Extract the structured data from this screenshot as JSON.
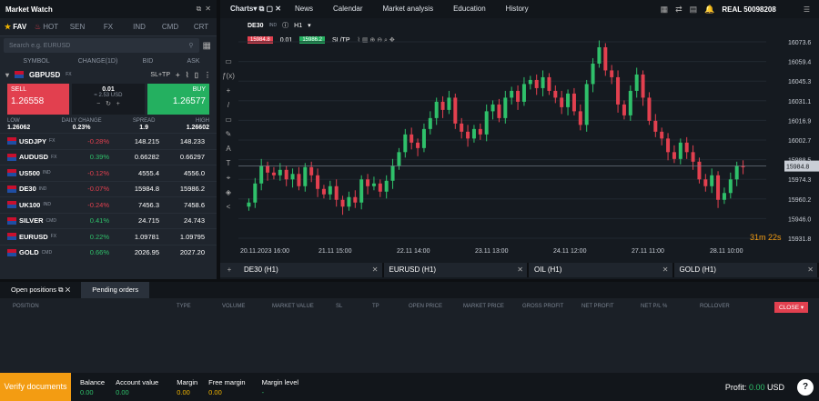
{
  "market_watch": {
    "title": "Market Watch",
    "tabs": [
      "FAV",
      "HOT",
      "SEN",
      "FX",
      "IND",
      "CMD",
      "CRT"
    ],
    "search_placeholder": "Search e.g. EURUSD",
    "columns": [
      "SYMBOL",
      "CHANGE(1D)",
      "BID",
      "ASK"
    ],
    "selected": {
      "symbol": "GBPUSD",
      "type": "FX",
      "sltp": "SL+TP",
      "sell_label": "SELL",
      "sell": "1.26558",
      "buy_label": "BUY",
      "buy": "1.26577",
      "volume": "0.01",
      "value": "≈ 2.53 USD",
      "low_label": "LOW",
      "low": "1.26062",
      "daily_label": "DAILY CHANGE",
      "daily": "0.23%",
      "spread_label": "SPREAD",
      "spread": "1.9",
      "high_label": "HIGH",
      "high": "1.26602"
    },
    "rows": [
      {
        "symbol": "USDJPY",
        "type": "FX",
        "change": "-0.28%",
        "bid": "148.215",
        "ask": "148.233",
        "neg": true
      },
      {
        "symbol": "AUDUSD",
        "type": "FX",
        "change": "0.39%",
        "bid": "0.66282",
        "ask": "0.66297",
        "neg": false
      },
      {
        "symbol": "US500",
        "type": "IND",
        "change": "-0.12%",
        "bid": "4555.4",
        "ask": "4556.0",
        "neg": true
      },
      {
        "symbol": "DE30",
        "type": "IND",
        "change": "-0.07%",
        "bid": "15984.8",
        "ask": "15986.2",
        "neg": true
      },
      {
        "symbol": "UK100",
        "type": "IND",
        "change": "-0.24%",
        "bid": "7456.3",
        "ask": "7458.6",
        "neg": true
      },
      {
        "symbol": "SILVER",
        "type": "CMD",
        "change": "0.41%",
        "bid": "24.715",
        "ask": "24.743",
        "neg": false
      },
      {
        "symbol": "EURUSD",
        "type": "FX",
        "change": "0.22%",
        "bid": "1.09781",
        "ask": "1.09795",
        "neg": false
      },
      {
        "symbol": "GOLD",
        "type": "CMD",
        "change": "0.66%",
        "bid": "2026.95",
        "ask": "2027.20",
        "neg": false
      }
    ]
  },
  "chart": {
    "label": "Charts",
    "menu": [
      "News",
      "Calendar",
      "Market analysis",
      "Education",
      "History"
    ],
    "account": "REAL 50098208",
    "symbol": "DE30",
    "symbol_type": "IND",
    "timeframe": "H1",
    "sell": "15984.8",
    "vol": "0.01",
    "buy": "15986.2",
    "sltp": "SL/TP",
    "y_ticks": [
      "16073.6",
      "16059.4",
      "16045.3",
      "16031.1",
      "16016.9",
      "16002.7",
      "15988.5",
      "15974.3",
      "15960.2",
      "15946.0",
      "15931.8"
    ],
    "x_ticks": [
      "20.11.2023 16:00",
      "21.11 15:00",
      "22.11 14:00",
      "23.11 13:00",
      "24.11 12:00",
      "27.11 11:00",
      "28.11 10:00"
    ],
    "current": "15984.8",
    "countdown": "31m 22s",
    "tabs": [
      "DE30 (H1)",
      "EURUSD (H1)",
      "OIL (H1)",
      "GOLD (H1)"
    ]
  },
  "chart_data": {
    "type": "candlestick",
    "ylim": [
      15931.8,
      16080
    ],
    "last": 15984.8,
    "closes": [
      15958,
      15972,
      15985,
      15980,
      15978,
      15982,
      15975,
      15979,
      15970,
      15984,
      15978,
      15968,
      15964,
      15970,
      15960,
      15955,
      15962,
      15958,
      15975,
      15970,
      15972,
      15966,
      15974,
      15985,
      15995,
      16008,
      16002,
      15998,
      16012,
      16020,
      16032,
      16026,
      16035,
      16016,
      16010,
      16005,
      16012,
      16008,
      16025,
      16030,
      16020,
      16035,
      16040,
      16032,
      16045,
      16048,
      16042,
      16050,
      16040,
      16035,
      16028,
      16038,
      16025,
      16015,
      16045,
      16060,
      16072,
      16055,
      16050,
      16030,
      16022,
      16040,
      16052,
      16035,
      16018,
      16010,
      16005,
      15995,
      15990,
      16002,
      15995,
      15988,
      15975,
      15970,
      15978,
      15960,
      15965,
      15975,
      15985,
      15984.8
    ]
  },
  "positions": {
    "tabs": [
      "Open positions",
      "Pending orders"
    ],
    "columns": [
      "POSITION",
      "TYPE",
      "VOLUME",
      "MARKET VALUE",
      "SL",
      "TP",
      "OPEN PRICE",
      "MARKET PRICE",
      "GROSS PROFIT",
      "NET PROFIT",
      "NET P/L %",
      "ROLLOVER"
    ],
    "close_label": "CLOSE"
  },
  "footer": {
    "verify": "Verify documents",
    "balance_label": "Balance",
    "balance": "0.00",
    "account_value_label": "Account value",
    "account_value": "0.00",
    "margin_label": "Margin",
    "margin": "0.00",
    "free_margin_label": "Free margin",
    "free_margin": "0.00",
    "margin_level_label": "Margin level",
    "margin_level": "-",
    "profit_label": "Profit:",
    "profit": "0.00",
    "currency": "USD"
  }
}
